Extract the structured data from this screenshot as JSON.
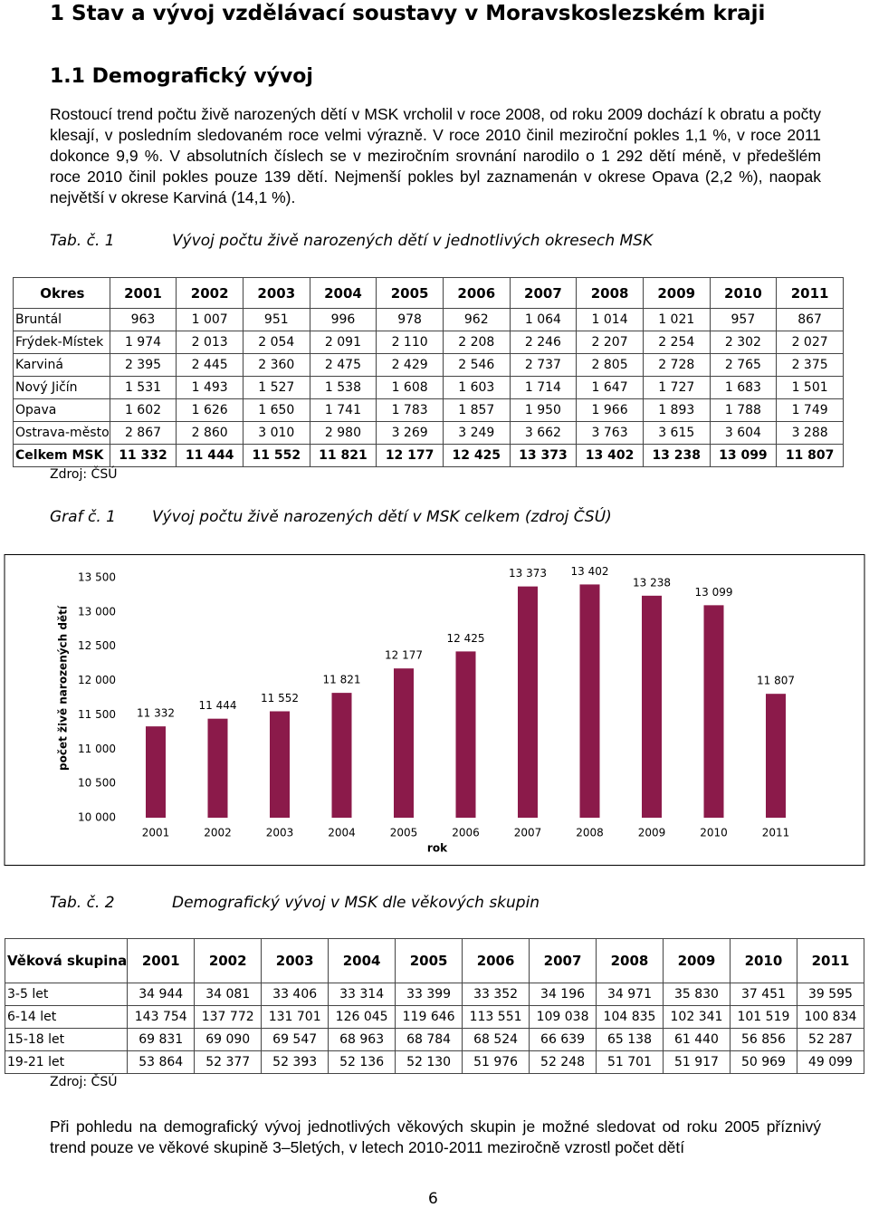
{
  "heading1": "1   Stav a vývoj vzdělávací soustavy v Moravskoslezském kraji",
  "heading2": "1.1  Demografický vývoj",
  "paragraph1": "Rostoucí trend počtu živě narozených dětí v MSK vrcholil v roce 2008, od roku 2009 dochází k obratu a počty klesají, v posledním sledovaném roce velmi výrazně. V roce 2010 činil meziroční pokles 1,1 %, v roce 2011 dokonce 9,9 %. V absolutních číslech se v meziročním srovnání narodilo o 1 292 dětí méně, v předešlém roce 2010 činil pokles pouze 139 dětí. Nejmenší pokles byl zaznamenán v okrese Opava (2,2 %), naopak největší v okrese Karviná (14,1 %).",
  "table1": {
    "label": "Tab. č. 1",
    "caption": "Vývoj počtu živě narozených dětí v jednotlivých okresech MSK",
    "header": [
      "Okres",
      "2001",
      "2002",
      "2003",
      "2004",
      "2005",
      "2006",
      "2007",
      "2008",
      "2009",
      "2010",
      "2011"
    ],
    "rows": [
      [
        "Bruntál",
        "963",
        "1 007",
        "951",
        "996",
        "978",
        "962",
        "1 064",
        "1 014",
        "1 021",
        "957",
        "867"
      ],
      [
        "Frýdek-Místek",
        "1 974",
        "2 013",
        "2 054",
        "2 091",
        "2 110",
        "2 208",
        "2 246",
        "2 207",
        "2 254",
        "2 302",
        "2 027"
      ],
      [
        "Karviná",
        "2 395",
        "2 445",
        "2 360",
        "2 475",
        "2 429",
        "2 546",
        "2 737",
        "2 805",
        "2 728",
        "2 765",
        "2 375"
      ],
      [
        "Nový Jičín",
        "1 531",
        "1 493",
        "1 527",
        "1 538",
        "1 608",
        "1 603",
        "1 714",
        "1 647",
        "1 727",
        "1 683",
        "1 501"
      ],
      [
        "Opava",
        "1 602",
        "1 626",
        "1 650",
        "1 741",
        "1 783",
        "1 857",
        "1 950",
        "1 966",
        "1 893",
        "1 788",
        "1 749"
      ],
      [
        "Ostrava-město",
        "2 867",
        "2 860",
        "3 010",
        "2 980",
        "3 269",
        "3 249",
        "3 662",
        "3 763",
        "3 615",
        "3 604",
        "3 288"
      ],
      [
        "Celkem MSK",
        "11 332",
        "11 444",
        "11 552",
        "11 821",
        "12 177",
        "12 425",
        "13 373",
        "13 402",
        "13 238",
        "13 099",
        "11 807"
      ]
    ],
    "source": "Zdroj: ČSÚ"
  },
  "chart_caption": {
    "label": "Graf č. 1",
    "caption": "Vývoj počtu živě narozených dětí v MSK celkem (zdroj ČSÚ)"
  },
  "chart_data": {
    "type": "bar",
    "y_label": "počet živě narozených dětí",
    "x_label": "rok",
    "categories": [
      "2001",
      "2002",
      "2003",
      "2004",
      "2005",
      "2006",
      "2007",
      "2008",
      "2009",
      "2010",
      "2011"
    ],
    "values": [
      11332,
      11444,
      11552,
      11821,
      12177,
      12425,
      13373,
      13402,
      13238,
      13099,
      11807
    ],
    "value_labels": [
      "11 332",
      "11 444",
      "11 552",
      "11 821",
      "12 177",
      "12 425",
      "13 373",
      "13 402",
      "13 238",
      "13 099",
      "11 807"
    ],
    "color": "#8b1a4a",
    "ylim": [
      10000,
      13500
    ],
    "yticks": [
      {
        "value": 10000,
        "label": "10 000"
      },
      {
        "value": 10500,
        "label": "10 500"
      },
      {
        "value": 11000,
        "label": "11 000"
      },
      {
        "value": 11500,
        "label": "11 500"
      },
      {
        "value": 12000,
        "label": "12 000"
      },
      {
        "value": 12500,
        "label": "12 500"
      },
      {
        "value": 13000,
        "label": "13 000"
      },
      {
        "value": 13500,
        "label": "13 500"
      }
    ],
    "grid": false
  },
  "table2": {
    "label": "Tab. č. 2",
    "caption": "Demografický vývoj v MSK dle věkových skupin",
    "header": [
      "Věková skupina",
      "2001",
      "2002",
      "2003",
      "2004",
      "2005",
      "2006",
      "2007",
      "2008",
      "2009",
      "2010",
      "2011"
    ],
    "rows": [
      [
        "3-5 let",
        "34 944",
        "34 081",
        "33 406",
        "33 314",
        "33 399",
        "33 352",
        "34 196",
        "34 971",
        "35 830",
        "37 451",
        "39 595"
      ],
      [
        "6-14 let",
        "143 754",
        "137 772",
        "131 701",
        "126 045",
        "119 646",
        "113 551",
        "109 038",
        "104 835",
        "102 341",
        "101 519",
        "100 834"
      ],
      [
        "15-18 let",
        "69 831",
        "69 090",
        "69 547",
        "68 963",
        "68 784",
        "68 524",
        "66 639",
        "65 138",
        "61 440",
        "56 856",
        "52 287"
      ],
      [
        "19-21 let",
        "53 864",
        "52 377",
        "52 393",
        "52 136",
        "52 130",
        "51 976",
        "52 248",
        "51 701",
        "51 917",
        "50 969",
        "49 099"
      ]
    ],
    "source": "Zdroj: ČSÚ"
  },
  "paragraph2": "Při pohledu na demografický vývoj jednotlivých věkových skupin je možné sledovat od roku 2005 příznivý trend pouze ve věkové skupině 3–5letých, v letech 2010-2011 meziročně vzrostl počet dětí",
  "page_number": "6"
}
